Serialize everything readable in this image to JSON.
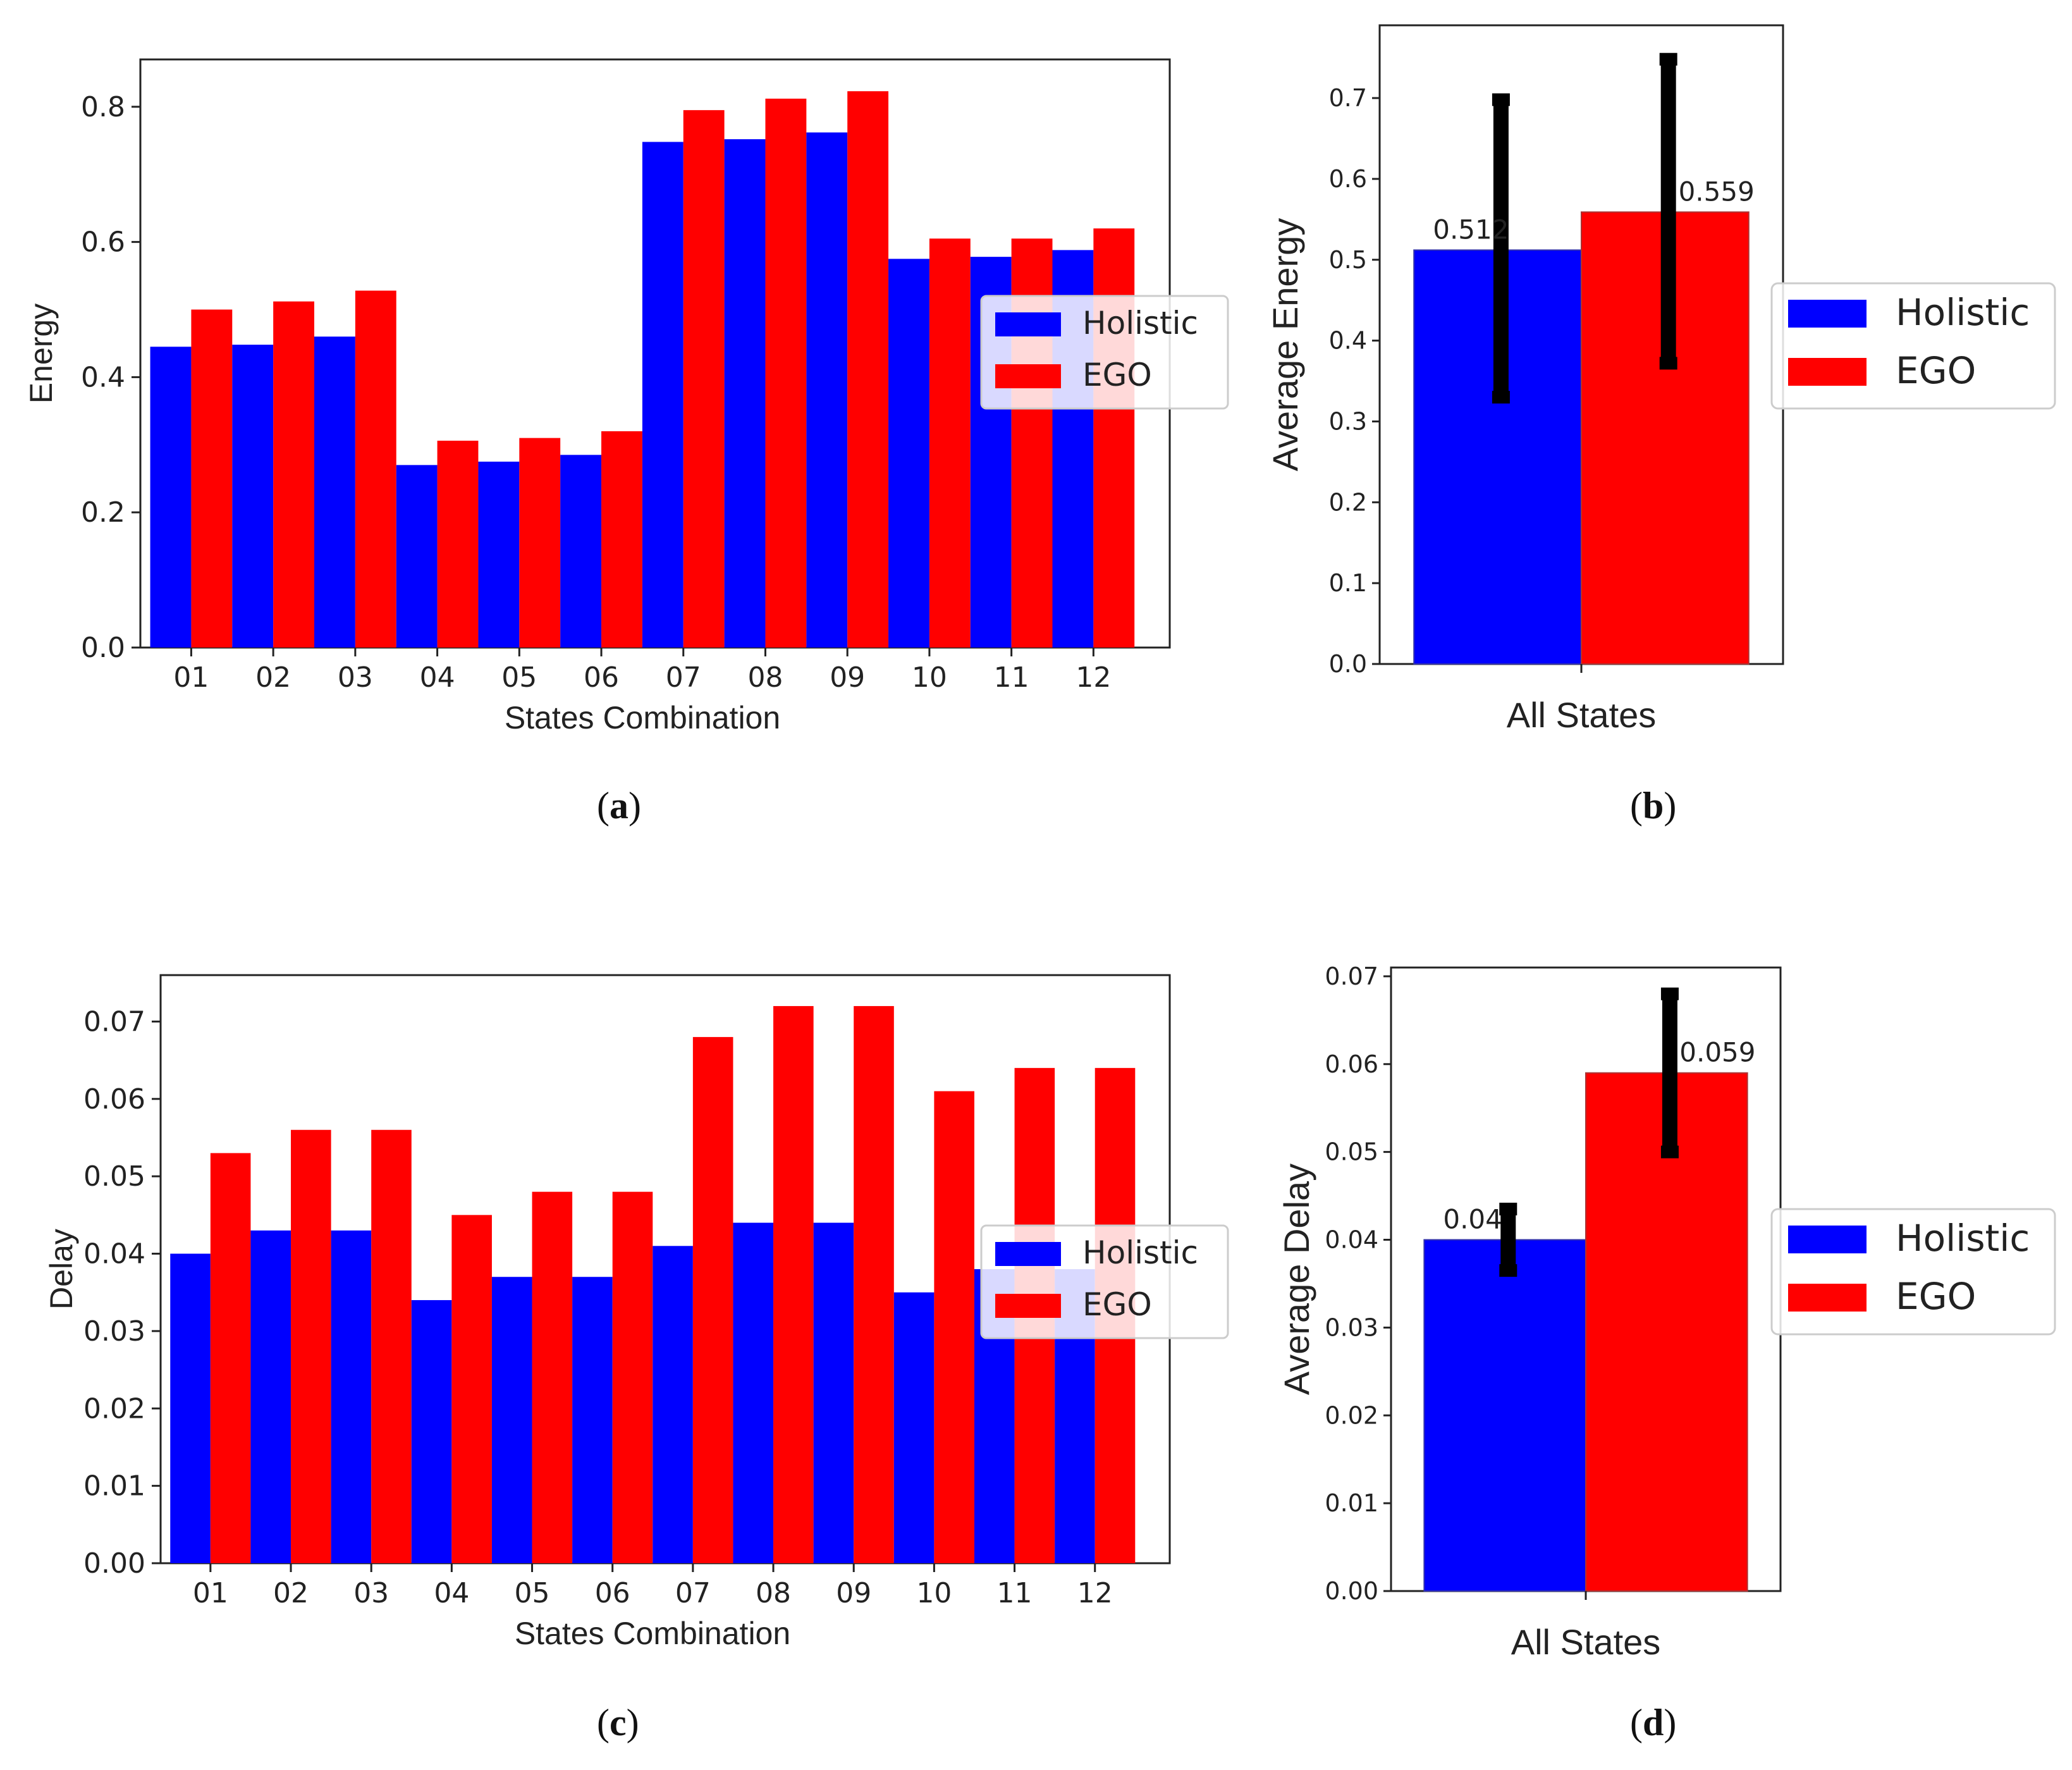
{
  "colors": {
    "holistic": "#0000ff",
    "ego": "#ff0000",
    "errorbar": "#000000"
  },
  "captions": [
    {
      "open": "(",
      "letter": "a",
      "close": ")"
    },
    {
      "open": "(",
      "letter": "b",
      "close": ")"
    },
    {
      "open": "(",
      "letter": "c",
      "close": ")"
    },
    {
      "open": "(",
      "letter": "d",
      "close": ")"
    }
  ],
  "chart_data": [
    {
      "type": "bar",
      "xlabel": "States Combination",
      "ylabel": "Energy",
      "categories": [
        "01",
        "02",
        "03",
        "04",
        "05",
        "06",
        "07",
        "08",
        "09",
        "10",
        "11",
        "12"
      ],
      "ylim": [
        0,
        0.87
      ],
      "yticks": [
        0.0,
        0.2,
        0.4,
        0.6,
        0.8
      ],
      "ytick_labels": [
        "0.0",
        "0.2",
        "0.4",
        "0.6",
        "0.8"
      ],
      "legend": "center-right",
      "series": [
        {
          "name": "Holistic",
          "values": [
            0.445,
            0.448,
            0.46,
            0.27,
            0.275,
            0.285,
            0.748,
            0.752,
            0.762,
            0.575,
            0.578,
            0.588
          ]
        },
        {
          "name": "EGO",
          "values": [
            0.5,
            0.512,
            0.528,
            0.306,
            0.31,
            0.32,
            0.795,
            0.812,
            0.823,
            0.605,
            0.605,
            0.62
          ]
        }
      ]
    },
    {
      "type": "bar",
      "xlabel": "",
      "ylabel": "Average Energy",
      "categories": [
        "All States"
      ],
      "ylim": [
        0,
        0.79
      ],
      "yticks": [
        0.0,
        0.1,
        0.2,
        0.3,
        0.4,
        0.5,
        0.6,
        0.7
      ],
      "ytick_labels": [
        "0.0",
        "0.1",
        "0.2",
        "0.3",
        "0.4",
        "0.5",
        "0.6",
        "0.7"
      ],
      "legend": "center-right",
      "series": [
        {
          "name": "Holistic",
          "values": [
            0.512
          ],
          "error": [
            [
              0.33,
              0.698
            ]
          ],
          "label": "0.512"
        },
        {
          "name": "EGO",
          "values": [
            0.559
          ],
          "error": [
            [
              0.372,
              0.748
            ]
          ],
          "label": "0.559"
        }
      ]
    },
    {
      "type": "bar",
      "xlabel": "States Combination",
      "ylabel": "Delay",
      "categories": [
        "01",
        "02",
        "03",
        "04",
        "05",
        "06",
        "07",
        "08",
        "09",
        "10",
        "11",
        "12"
      ],
      "ylim": [
        0,
        0.076
      ],
      "yticks": [
        0.0,
        0.01,
        0.02,
        0.03,
        0.04,
        0.05,
        0.06,
        0.07
      ],
      "ytick_labels": [
        "0.00",
        "0.01",
        "0.02",
        "0.03",
        "0.04",
        "0.05",
        "0.06",
        "0.07"
      ],
      "legend": "center-right",
      "series": [
        {
          "name": "Holistic",
          "values": [
            0.04,
            0.043,
            0.043,
            0.034,
            0.037,
            0.037,
            0.041,
            0.044,
            0.044,
            0.035,
            0.038,
            0.038
          ]
        },
        {
          "name": "EGO",
          "values": [
            0.053,
            0.056,
            0.056,
            0.045,
            0.048,
            0.048,
            0.068,
            0.072,
            0.072,
            0.061,
            0.064,
            0.064
          ]
        }
      ]
    },
    {
      "type": "bar",
      "xlabel": "",
      "ylabel": "Average Delay",
      "categories": [
        "All States"
      ],
      "ylim": [
        0,
        0.071
      ],
      "yticks": [
        0.0,
        0.01,
        0.02,
        0.03,
        0.04,
        0.05,
        0.06,
        0.07
      ],
      "ytick_labels": [
        "0.00",
        "0.01",
        "0.02",
        "0.03",
        "0.04",
        "0.05",
        "0.06",
        "0.07"
      ],
      "legend": "center-right",
      "series": [
        {
          "name": "Holistic",
          "values": [
            0.04
          ],
          "error": [
            [
              0.0365,
              0.0435
            ]
          ],
          "label": "0.04"
        },
        {
          "name": "EGO",
          "values": [
            0.059
          ],
          "error": [
            [
              0.05,
              0.068
            ]
          ],
          "label": "0.059"
        }
      ]
    }
  ]
}
